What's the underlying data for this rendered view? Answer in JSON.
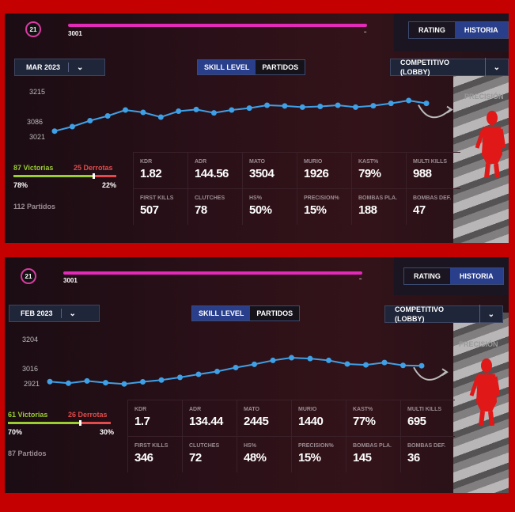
{
  "panels": [
    {
      "logo": "21",
      "progress_left": "3001",
      "progress_right": "–",
      "tabs": [
        "RATING",
        "HISTORIA"
      ],
      "active_tab": 1,
      "month": "MAR 2023",
      "segments": [
        "SKILL LEVEL",
        "PARTIDOS"
      ],
      "mode": "COMPETITIVO (LOBBY)",
      "precision": "PRECISIÓN",
      "chart_data": {
        "type": "line",
        "yticks": [
          "3215",
          "3086",
          "3021"
        ],
        "ylim": [
          3000,
          3240
        ],
        "values": [
          3021,
          3040,
          3065,
          3085,
          3110,
          3100,
          3080,
          3105,
          3112,
          3098,
          3110,
          3118,
          3130,
          3127,
          3122,
          3125,
          3130,
          3122,
          3128,
          3138,
          3150,
          3138
        ]
      },
      "wins": "87 Victorias",
      "losses": "25 Derrotas",
      "win_pct_label": "78%",
      "loss_pct_label": "22%",
      "win_frac": 0.78,
      "matches": "112 Partidos",
      "stats": [
        {
          "k": "KDR",
          "v": "1.82"
        },
        {
          "k": "ADR",
          "v": "144.56"
        },
        {
          "k": "MATO",
          "v": "3504"
        },
        {
          "k": "MURIO",
          "v": "1926"
        },
        {
          "k": "KAST%",
          "v": "79%"
        },
        {
          "k": "MULTI KILLS",
          "v": "988"
        },
        {
          "k": "FIRST KILLS",
          "v": "507"
        },
        {
          "k": "CLUTCHES",
          "v": "78"
        },
        {
          "k": "HS%",
          "v": "50%"
        },
        {
          "k": "PRECISION%",
          "v": "15%"
        },
        {
          "k": "BOMBAS PLA.",
          "v": "188"
        },
        {
          "k": "BOMBAS DEF.",
          "v": "47"
        }
      ]
    },
    {
      "logo": "21",
      "progress_left": "3001",
      "progress_right": "–",
      "tabs": [
        "RATING",
        "HISTORIA"
      ],
      "active_tab": 1,
      "month": "FEB 2023",
      "segments": [
        "SKILL LEVEL",
        "PARTIDOS"
      ],
      "mode": "COMPETITIVO (LOBBY)",
      "precision": "PRECISIÓN",
      "chart_data": {
        "type": "line",
        "yticks": [
          "3204",
          "3016",
          "2921"
        ],
        "ylim": [
          2900,
          3230
        ],
        "values": [
          2921,
          2912,
          2925,
          2915,
          2908,
          2920,
          2930,
          2945,
          2962,
          2978,
          3000,
          3018,
          3040,
          3055,
          3050,
          3040,
          3020,
          3015,
          3028,
          3012,
          3010
        ]
      },
      "wins": "61 Victorias",
      "losses": "26 Derrotas",
      "win_pct_label": "70%",
      "loss_pct_label": "30%",
      "win_frac": 0.7,
      "matches": "87 Partidos",
      "stats": [
        {
          "k": "KDR",
          "v": "1.7"
        },
        {
          "k": "ADR",
          "v": "134.44"
        },
        {
          "k": "MATO",
          "v": "2445"
        },
        {
          "k": "MURIO",
          "v": "1440"
        },
        {
          "k": "KAST%",
          "v": "77%"
        },
        {
          "k": "MULTI KILLS",
          "v": "695"
        },
        {
          "k": "FIRST KILLS",
          "v": "346"
        },
        {
          "k": "CLUTCHES",
          "v": "72"
        },
        {
          "k": "HS%",
          "v": "48%"
        },
        {
          "k": "PRECISION%",
          "v": "15%"
        },
        {
          "k": "BOMBAS PLA.",
          "v": "145"
        },
        {
          "k": "BOMBAS DEF.",
          "v": "36"
        }
      ]
    }
  ]
}
